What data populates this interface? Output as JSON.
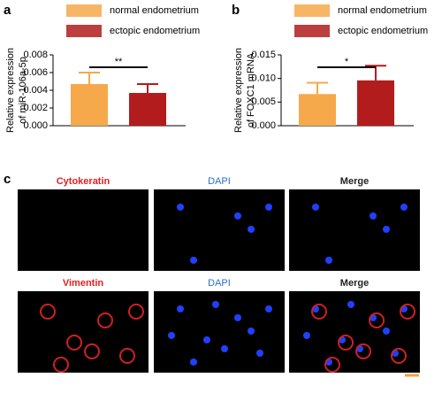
{
  "chart_data": [
    {
      "type": "bar",
      "panel_label": "a",
      "ylabel": [
        "Relative expression",
        "of miR-106a-5p"
      ],
      "categories": [
        null
      ],
      "series": [
        {
          "name": "normal endometrium",
          "color": "#f5a94a",
          "values": [
            0.0047
          ],
          "errors": [
            0.0013
          ]
        },
        {
          "name": "ectopic endometrium",
          "color": "#b21c1c",
          "values": [
            0.0037
          ],
          "errors": [
            0.001
          ]
        }
      ],
      "ylim": [
        0,
        0.008
      ],
      "yticks": [
        {
          "value": 0,
          "label": "0.000"
        },
        0.002,
        0.004,
        0.006,
        0.008
      ],
      "annotation": "**"
    },
    {
      "type": "bar",
      "panel_label": "b",
      "ylabel": [
        "Relative expression",
        "of FOXC1 mRNA"
      ],
      "categories": [
        null
      ],
      "series": [
        {
          "name": "normal endometrium",
          "color": "#f5a94a",
          "values": [
            0.0067
          ],
          "errors": [
            0.0024
          ]
        },
        {
          "name": "ectopic endometrium",
          "color": "#b21c1c",
          "values": [
            0.0096
          ],
          "errors": [
            0.0031
          ]
        }
      ],
      "ylim": [
        0,
        0.015
      ],
      "yticks": [
        {
          "value": 0,
          "label": "0.000"
        },
        0.005,
        {
          "value": 0.01,
          "label": "0.010"
        },
        0.015
      ],
      "annotation": "*"
    }
  ],
  "panel_c": {
    "label": "c",
    "rows": [
      [
        "Cytokeratin",
        "DAPI",
        "Merge"
      ],
      [
        "Vimentin",
        "DAPI",
        "Merge"
      ]
    ]
  }
}
